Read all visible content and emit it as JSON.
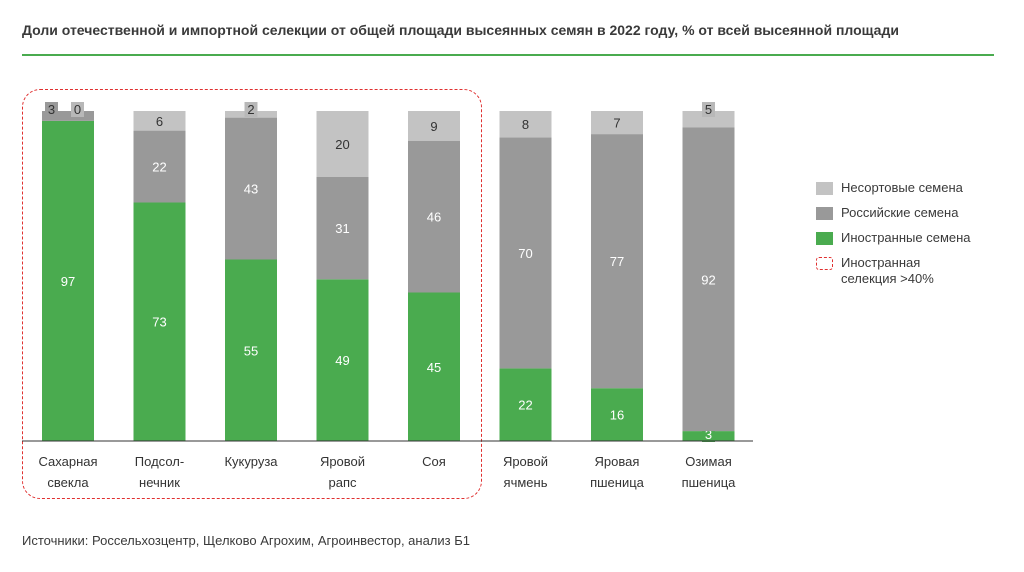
{
  "title": "Доли отечественной и импортной селекции от общей площади высеянных семян в 2022 году, % от всей высеянной площади",
  "source": "Источники: Россельхозцентр, Щелково Агрохим, Агроинвестор, анализ Б1",
  "colors": {
    "non_varietal": "#c3c3c3",
    "russian": "#999999",
    "foreign": "#4aab4f",
    "accent_line": "#4aab4f",
    "highlight": "#e03030"
  },
  "legend": [
    {
      "label": "Несортовые семена",
      "color": "#c3c3c3",
      "style": "fill"
    },
    {
      "label": "Российские семена",
      "color": "#999999",
      "style": "fill"
    },
    {
      "label": "Иностранные семена",
      "color": "#4aab4f",
      "style": "fill"
    },
    {
      "label": "Иностранная\nселекция >40%",
      "color": "#e03030",
      "style": "dashed"
    }
  ],
  "chart_data": {
    "type": "bar",
    "stacked": true,
    "normalized_percent": true,
    "categories": [
      [
        "Сахарная",
        "свекла"
      ],
      [
        "Подсол-",
        "нечник"
      ],
      [
        "Кукуруза"
      ],
      [
        "Яровой",
        "рапс"
      ],
      [
        "Соя"
      ],
      [
        "Яровой",
        "ячмень"
      ],
      [
        "Яровая",
        "пшеница"
      ],
      [
        "Озимая",
        "пшеница"
      ]
    ],
    "series": [
      {
        "name": "Иностранные семена",
        "color": "#4aab4f",
        "values": [
          97,
          73,
          55,
          49,
          45,
          22,
          16,
          3
        ]
      },
      {
        "name": "Российские семена",
        "color": "#999999",
        "values": [
          3,
          22,
          43,
          31,
          46,
          70,
          77,
          92
        ]
      },
      {
        "name": "Несортовые семена",
        "color": "#c3c3c3",
        "values": [
          0,
          6,
          2,
          20,
          9,
          8,
          7,
          5
        ]
      }
    ],
    "highlight": {
      "label": "Иностранная селекция >40%",
      "categories_index": [
        0,
        1,
        2,
        3,
        4
      ]
    }
  }
}
